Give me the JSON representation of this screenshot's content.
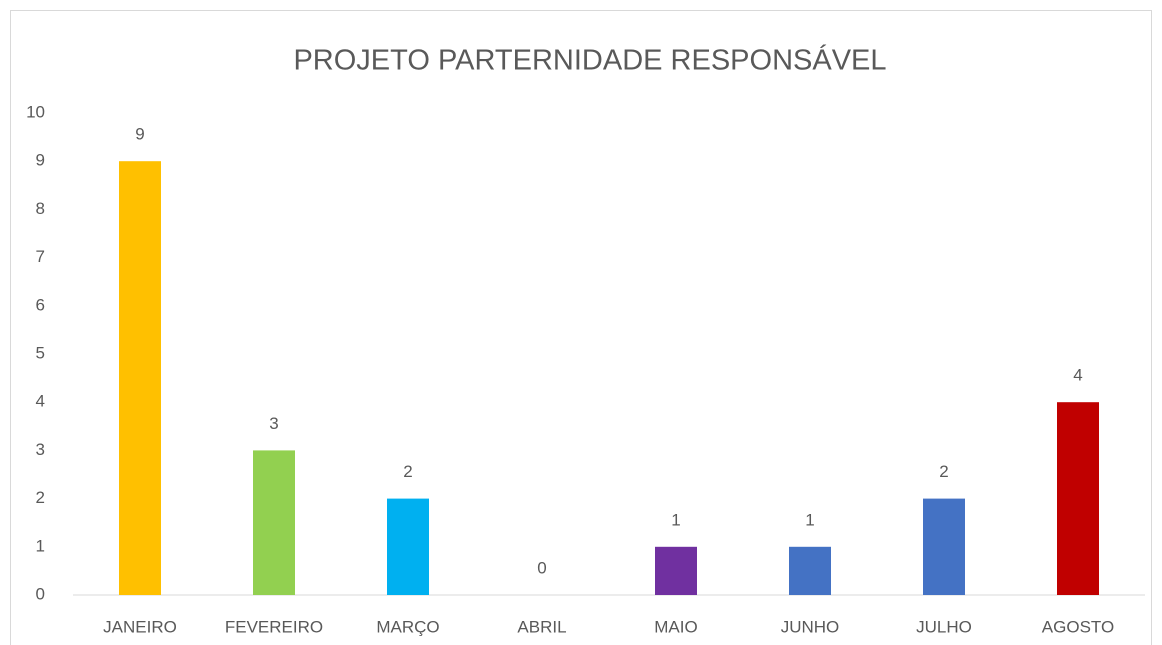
{
  "chart_data": {
    "type": "bar",
    "title": "PROJETO PARTERNIDADE RESPONSÁVEL",
    "categories": [
      "JANEIRO",
      "FEVEREIRO",
      "MARÇO",
      "ABRIL",
      "MAIO",
      "JUNHO",
      "JULHO",
      "AGOSTO"
    ],
    "values": [
      9,
      3,
      2,
      0,
      1,
      1,
      2,
      4
    ],
    "colors": [
      "#ffc000",
      "#92d050",
      "#00b0f0",
      "#4472c4",
      "#7030a0",
      "#4472c4",
      "#4472c4",
      "#c00000"
    ],
    "ylim": [
      0,
      10
    ],
    "yticks": [
      0,
      1,
      2,
      3,
      4,
      5,
      6,
      7,
      8,
      9,
      10
    ],
    "grid": false,
    "data_labels": true
  }
}
